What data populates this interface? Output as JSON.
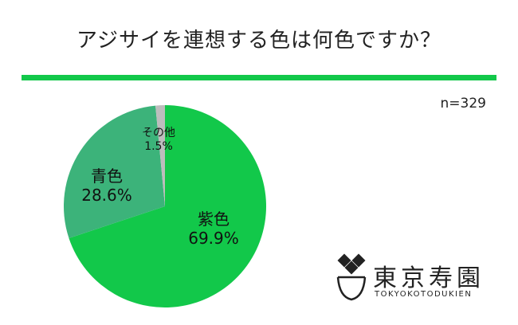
{
  "header": {
    "title": "アジサイを連想する色は何色ですか？",
    "accent_color": "#12c84a"
  },
  "sample_size": "n=329",
  "chart_data": {
    "type": "pie",
    "title": "アジサイを連想する色は何色ですか？",
    "start": "12 o'clock",
    "direction": "clockwise",
    "slices": [
      {
        "label": "紫色",
        "value": 69.9,
        "value_label": "69.9%",
        "color": "#12c84a"
      },
      {
        "label": "青色",
        "value": 28.6,
        "value_label": "28.6%",
        "color": "#3cb37a"
      },
      {
        "label": "その他",
        "value": 1.5,
        "value_label": "1.5%",
        "color": "#bdbdbd"
      }
    ]
  },
  "logo": {
    "name": "東京寿園",
    "subtitle": "TOKYOKOTODUKIEN",
    "icon": "diamond-bowl-icon"
  }
}
